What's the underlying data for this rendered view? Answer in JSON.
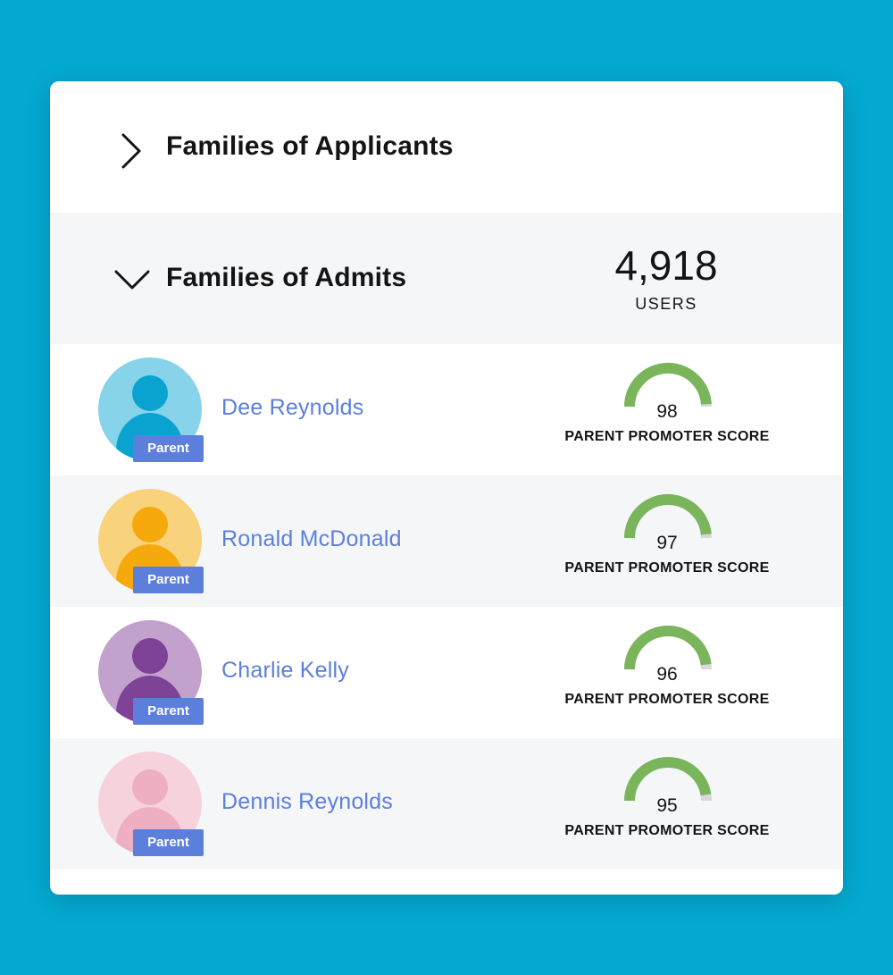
{
  "sections": {
    "applicants": {
      "title": "Families of Applicants",
      "expanded": false
    },
    "admits": {
      "title": "Families of Admits",
      "expanded": true,
      "count": "4,918",
      "count_label": "USERS"
    }
  },
  "badge_label": "Parent",
  "score_label": "PARENT PROMOTER SCORE",
  "colors": {
    "name": "#5c7fdc",
    "badge": "#5c7fdc",
    "gauge_fill": "#7ab55c",
    "gauge_track": "#d9d9d9"
  },
  "people": [
    {
      "name": "Dee Reynolds",
      "score": "98",
      "score_fraction": 0.98,
      "avatar_bg": "#87d3ea",
      "avatar_fg": "#0aa3d0"
    },
    {
      "name": "Ronald McDonald",
      "score": "97",
      "score_fraction": 0.97,
      "avatar_bg": "#f9d27c",
      "avatar_fg": "#f6a90d"
    },
    {
      "name": "Charlie Kelly",
      "score": "96",
      "score_fraction": 0.96,
      "avatar_bg": "#c3a1cd",
      "avatar_fg": "#7e4396"
    },
    {
      "name": "Dennis Reynolds",
      "score": "95",
      "score_fraction": 0.95,
      "avatar_bg": "#f6d2dc",
      "avatar_fg": "#efafc2"
    }
  ]
}
